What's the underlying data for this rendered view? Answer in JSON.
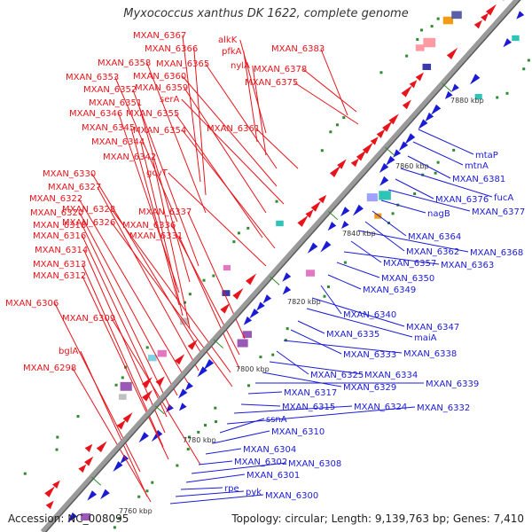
{
  "title": "Myxococcus xanthus DK 1622, complete genome",
  "accession": "Accession: NC_008095",
  "topology": "Topology: circular; Length: 9,139,763 bp; Genes: 7,410",
  "colors": {
    "forward_label": "#e8141b",
    "reverse_label": "#1b1bd6",
    "backbone": "#8c8c8c"
  },
  "ticks": [
    "7760 kbp",
    "7780 kbp",
    "7800 kbp",
    "7820 kbp",
    "7840 kbp",
    "7860 kbp",
    "7880 kbp"
  ],
  "forward_labels": [
    "alkK",
    "pfkA",
    "MXAN_6367",
    "MXAN_6366",
    "nylA",
    "MXAN_6383",
    "MXAN_6358",
    "MXAN_6365",
    "MXAN_6378",
    "MXAN_6353",
    "MXAN_6360",
    "MXAN_6375",
    "MXAN_6352",
    "MXAN_6359",
    "MXAN_6351",
    "serA",
    "MXAN_6346",
    "MXAN_6355",
    "MXAN_6345",
    "MXAN_6354",
    "MXAN_6361",
    "MXAN_6344",
    "MXAN_6342",
    "gcvT",
    "MXAN_6330",
    "MXAN_6327",
    "MXAN_6322",
    "MXAN_6328",
    "MXAN_6320",
    "MXAN_6326",
    "MXAN_6337",
    "MXAN_6318",
    "MXAN_6336",
    "MXAN_6316",
    "MXAN_6331",
    "MXAN_6314",
    "MXAN_6313",
    "MXAN_6312",
    "MXAN_6306",
    "MXAN_6309",
    "bglA",
    "MXAN_6298"
  ],
  "reverse_labels": [
    "mtaP",
    "mtnA",
    "MXAN_6381",
    "fucA",
    "MXAN_6376",
    "MXAN_6377",
    "nagB",
    "MXAN_6364",
    "MXAN_6362",
    "MXAN_6368",
    "MXAN_6357",
    "MXAN_6363",
    "MXAN_6350",
    "MXAN_6349",
    "MXAN_6340",
    "MXAN_6347",
    "maiA",
    "MXAN_6335",
    "MXAN_6333",
    "MXAN_6338",
    "MXAN_6325",
    "MXAN_6334",
    "MXAN_6329",
    "MXAN_6339",
    "MXAN_6317",
    "MXAN_6315",
    "MXAN_6324",
    "MXAN_6332",
    "ssnA",
    "MXAN_6310",
    "MXAN_6304",
    "MXAN_6302",
    "MXAN_6308",
    "MXAN_6301",
    "rpe",
    "pyk",
    "MXAN_6300"
  ]
}
